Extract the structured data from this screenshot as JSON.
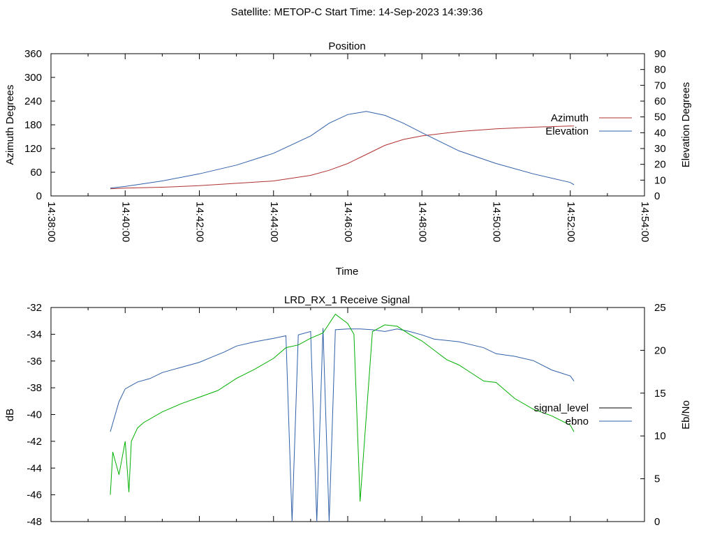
{
  "header": {
    "title": "Satellite: METOP-C    Start Time: 14-Sep-2023 14:39:36"
  },
  "colors": {
    "azimuth": "#b03030",
    "elevation": "#3060a8",
    "ebno": "#3060a8",
    "signal_level": "#00b000",
    "axis": "#000000"
  },
  "chart_data": [
    {
      "type": "line",
      "title": "Position",
      "xlabel": "Time",
      "ylabel": "Azimuth Degrees",
      "y2label": "Elevation Degrees",
      "xlim": [
        "14:38:00",
        "14:54:00"
      ],
      "ylim": [
        0,
        360
      ],
      "y2lim": [
        0,
        90
      ],
      "x_ticks": [
        "14:38:00",
        "14:40:00",
        "14:42:00",
        "14:44:00",
        "14:46:00",
        "14:48:00",
        "14:50:00",
        "14:52:00",
        "14:54:00"
      ],
      "y_ticks": [
        "0",
        "60",
        "120",
        "180",
        "240",
        "300",
        "360"
      ],
      "y2_ticks": [
        "0",
        "10",
        "20",
        "30",
        "40",
        "50",
        "60",
        "70",
        "80",
        "90"
      ],
      "grid": false,
      "legend": "right",
      "series": [
        {
          "name": "Azimuth",
          "axis": "left",
          "x": [
            "14:39:36",
            "14:40:00",
            "14:41:00",
            "14:42:00",
            "14:43:00",
            "14:44:00",
            "14:45:00",
            "14:45:30",
            "14:46:00",
            "14:46:30",
            "14:47:00",
            "14:47:30",
            "14:48:00",
            "14:49:00",
            "14:50:00",
            "14:51:00",
            "14:52:00",
            "14:52:06"
          ],
          "values": [
            18,
            20,
            22,
            26,
            32,
            38,
            52,
            65,
            82,
            105,
            128,
            143,
            152,
            163,
            170,
            174,
            177,
            177
          ]
        },
        {
          "name": "Elevation",
          "axis": "right",
          "x": [
            "14:39:36",
            "14:40:00",
            "14:41:00",
            "14:42:00",
            "14:43:00",
            "14:44:00",
            "14:45:00",
            "14:45:30",
            "14:46:00",
            "14:46:30",
            "14:47:00",
            "14:47:30",
            "14:48:00",
            "14:49:00",
            "14:50:00",
            "14:51:00",
            "14:52:00",
            "14:52:06"
          ],
          "values": [
            5,
            6,
            9.5,
            14,
            19.5,
            27,
            38,
            46,
            51.5,
            53.5,
            51,
            46,
            40,
            28.5,
            20.5,
            14,
            8.5,
            7
          ]
        }
      ]
    },
    {
      "type": "line",
      "title": "LRD_RX_1 Receive Signal",
      "ylabel": "dB",
      "y2label": "Eb/No",
      "xlim": [
        "14:38:00",
        "14:54:00"
      ],
      "ylim": [
        -48,
        -32
      ],
      "y2lim": [
        0,
        25
      ],
      "y_ticks": [
        "-32",
        "-34",
        "-36",
        "-38",
        "-40",
        "-42",
        "-44",
        "-46",
        "-48"
      ],
      "y2_ticks": [
        "0",
        "5",
        "10",
        "15",
        "20",
        "25"
      ],
      "grid": false,
      "legend": "right",
      "series": [
        {
          "name": "signal_level",
          "axis": "left",
          "x": [
            "14:39:36",
            "14:39:40",
            "14:39:50",
            "14:40:00",
            "14:40:06",
            "14:40:10",
            "14:40:20",
            "14:40:30",
            "14:41:00",
            "14:41:30",
            "14:42:00",
            "14:42:30",
            "14:43:00",
            "14:43:30",
            "14:44:00",
            "14:44:20",
            "14:44:40",
            "14:45:00",
            "14:45:20",
            "14:45:40",
            "14:46:00",
            "14:46:10",
            "14:46:20",
            "14:46:40",
            "14:47:00",
            "14:47:20",
            "14:47:40",
            "14:48:00",
            "14:48:20",
            "14:48:40",
            "14:49:00",
            "14:49:20",
            "14:49:40",
            "14:50:00",
            "14:50:30",
            "14:51:00",
            "14:51:30",
            "14:52:00",
            "14:52:06"
          ],
          "values": [
            -46,
            -42.8,
            -44.5,
            -42,
            -45.8,
            -42,
            -41,
            -40.6,
            -39.8,
            -39.2,
            -38.7,
            -38.2,
            -37.3,
            -36.6,
            -35.8,
            -35,
            -34.8,
            -34.3,
            -33.9,
            -32.5,
            -33.2,
            -34,
            -46.5,
            -33.8,
            -33.3,
            -33.4,
            -34,
            -34.5,
            -35.2,
            -35.9,
            -36.3,
            -36.9,
            -37.5,
            -37.6,
            -38.8,
            -39.6,
            -40.1,
            -40.8,
            -41.3
          ]
        },
        {
          "name": "ebno",
          "axis": "right",
          "x": [
            "14:39:36",
            "14:39:50",
            "14:40:00",
            "14:40:20",
            "14:40:40",
            "14:41:00",
            "14:41:40",
            "14:42:00",
            "14:42:20",
            "14:42:40",
            "14:43:00",
            "14:43:30",
            "14:44:00",
            "14:44:20",
            "14:44:30",
            "14:44:40",
            "14:45:00",
            "14:45:10",
            "14:45:20",
            "14:45:30",
            "14:45:40",
            "14:46:00",
            "14:46:20",
            "14:46:40",
            "14:47:00",
            "14:47:20",
            "14:47:40",
            "14:48:00",
            "14:48:20",
            "14:49:00",
            "14:49:40",
            "14:50:00",
            "14:50:30",
            "14:51:00",
            "14:51:30",
            "14:52:00",
            "14:52:06"
          ],
          "values": [
            10.5,
            14,
            15.5,
            16.3,
            16.7,
            17.4,
            18.2,
            18.6,
            19.2,
            19.8,
            20.5,
            21,
            21.4,
            21.7,
            0,
            21.8,
            22.2,
            0,
            22.6,
            0,
            22.4,
            22.5,
            22.5,
            22.4,
            22.2,
            22.5,
            22.2,
            21.8,
            21.3,
            21,
            20.3,
            19.6,
            19.3,
            18.8,
            17.7,
            17,
            16.4
          ]
        }
      ]
    }
  ]
}
